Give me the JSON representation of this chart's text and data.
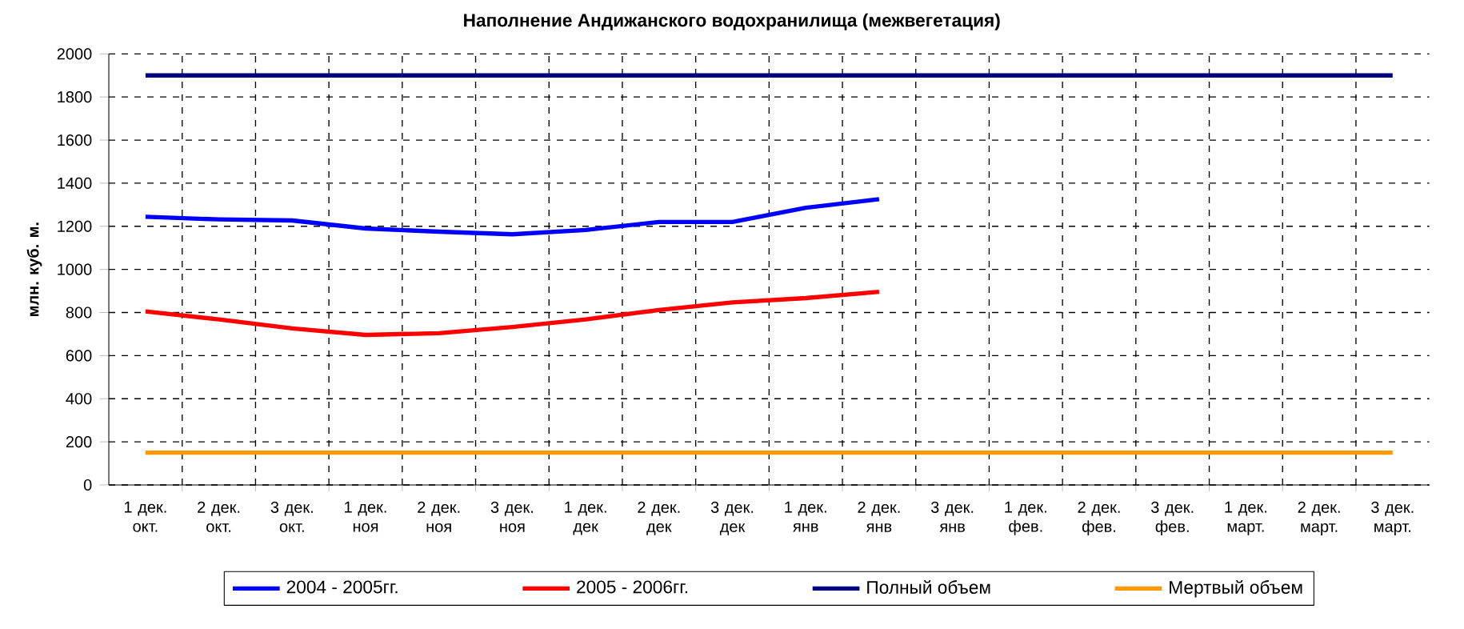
{
  "chart_data": {
    "type": "line",
    "title": "Наполнение Андижанского водохранилища (межвегетация)",
    "ylabel": "млн. куб. м.",
    "categories": [
      "1 дек. окт.",
      "2 дек. окт.",
      "3 дек. окт.",
      "1 дек. ноя",
      "2 дек. ноя",
      "3 дек. ноя",
      "1 дек. дек",
      "2 дек. дек",
      "3 дек. дек",
      "1 дек. янв",
      "2 дек. янв",
      "3 дек. янв",
      "1 дек. фев.",
      "2 дек. фев.",
      "3 дек. фев.",
      "1 дек. март.",
      "2 дек. март.",
      "3 дек. март."
    ],
    "series": [
      {
        "name": "2004 - 2005гг.",
        "color": "#0000ff",
        "values": [
          1244,
          1232,
          1227,
          1190,
          1175,
          1163,
          1183,
          1220,
          1220,
          1286,
          1326,
          null,
          null,
          null,
          null,
          null,
          null,
          null
        ]
      },
      {
        "name": "2005 - 2006гг.",
        "color": "#ff0000",
        "values": [
          805,
          768,
          726,
          696,
          704,
          733,
          768,
          812,
          847,
          867,
          896,
          null,
          null,
          null,
          null,
          null,
          null,
          null
        ]
      },
      {
        "name": "Полный объем",
        "color": "#000080",
        "values": [
          1900,
          1900,
          1900,
          1900,
          1900,
          1900,
          1900,
          1900,
          1900,
          1900,
          1900,
          1900,
          1900,
          1900,
          1900,
          1900,
          1900,
          1900
        ]
      },
      {
        "name": "Мертвый объем",
        "color": "#ff9900",
        "values": [
          150,
          150,
          150,
          150,
          150,
          150,
          150,
          150,
          150,
          150,
          150,
          150,
          150,
          150,
          150,
          150,
          150,
          150
        ]
      }
    ],
    "ylim": [
      0,
      2000
    ],
    "yticks": [
      0,
      200,
      400,
      600,
      800,
      1000,
      1200,
      1400,
      1600,
      1800,
      2000
    ],
    "grid": true,
    "legend": "bottom",
    "marker": "none",
    "line_style": "solid"
  }
}
